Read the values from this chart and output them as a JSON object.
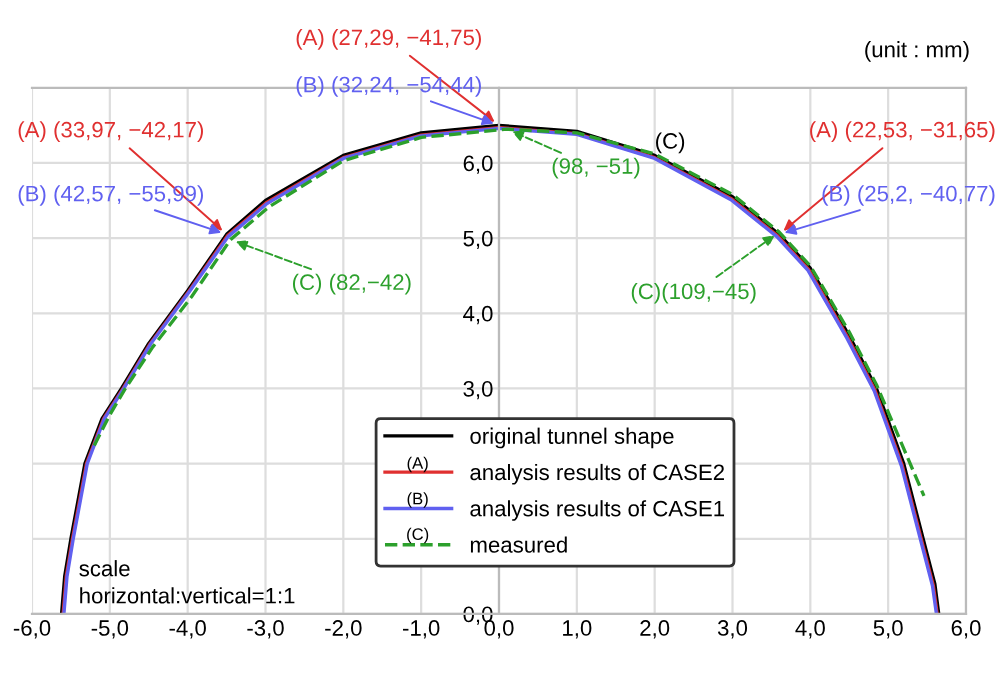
{
  "chart_data": {
    "type": "line",
    "series": [
      {
        "name": "original tunnel shape",
        "color": "#000000",
        "line_style": "solid",
        "x": [
          -5.62,
          -5.58,
          -5.5,
          -5.32,
          -5.1,
          -4.85,
          -4.5,
          -4.0,
          -3.5,
          -3.0,
          -2.0,
          -1.0,
          0,
          1.0,
          2.0,
          3.0,
          3.6,
          4.0,
          4.5,
          4.85,
          5.2,
          5.45,
          5.6,
          5.65
        ],
        "values": [
          0,
          0.5,
          1.0,
          2.0,
          2.6,
          3.0,
          3.6,
          4.3,
          5.05,
          5.5,
          6.1,
          6.4,
          6.5,
          6.42,
          6.1,
          5.55,
          5.05,
          4.6,
          3.7,
          3.0,
          2.0,
          1.0,
          0.4,
          0
        ]
      },
      {
        "name": "analysis results of CASE2",
        "color": "#e03030",
        "line_style": "solid",
        "x": [
          -5.6,
          -5.56,
          -5.48,
          -5.3,
          -5.08,
          -4.83,
          -4.48,
          -3.98,
          -3.49,
          -2.99,
          -2.0,
          -1.0,
          0,
          1.0,
          2.0,
          2.99,
          3.58,
          3.98,
          4.48,
          4.83,
          5.18,
          5.43,
          5.58,
          5.63
        ],
        "values": [
          0,
          0.5,
          1.0,
          2.0,
          2.6,
          3.0,
          3.6,
          4.3,
          5.03,
          5.47,
          6.07,
          6.37,
          6.47,
          6.39,
          6.07,
          5.52,
          5.03,
          4.58,
          3.68,
          2.98,
          1.98,
          0.98,
          0.38,
          0
        ]
      },
      {
        "name": "analysis results of CASE1",
        "color": "#6060f0",
        "line_style": "solid",
        "x": [
          -5.59,
          -5.55,
          -5.47,
          -5.29,
          -5.07,
          -4.82,
          -4.47,
          -3.97,
          -3.48,
          -2.98,
          -2.0,
          -1.0,
          0,
          1.0,
          2.0,
          2.98,
          3.57,
          3.97,
          4.47,
          4.82,
          5.17,
          5.42,
          5.57,
          5.62
        ],
        "values": [
          0,
          0.5,
          1.0,
          2.0,
          2.6,
          3.0,
          3.6,
          4.3,
          5.02,
          5.46,
          6.06,
          6.36,
          6.46,
          6.38,
          6.06,
          5.51,
          5.02,
          4.57,
          3.67,
          2.97,
          1.97,
          0.97,
          0.37,
          0
        ]
      },
      {
        "name": "measured",
        "color": "#2ca02c",
        "line_style": "dashed",
        "x": [
          -5.2,
          -5.0,
          -4.8,
          -4.45,
          -3.95,
          -3.45,
          -2.95,
          -2.0,
          -1.0,
          0.1,
          1.0,
          2.0,
          3.0,
          3.6,
          4.0,
          4.5,
          4.85,
          5.2,
          5.46
        ],
        "values": [
          2.24,
          2.65,
          3.0,
          3.55,
          4.22,
          4.98,
          5.42,
          6.03,
          6.34,
          6.45,
          6.4,
          6.12,
          5.58,
          5.08,
          4.63,
          3.75,
          3.05,
          2.2,
          1.57
        ]
      }
    ],
    "xlim": [
      -6,
      6
    ],
    "ylim": [
      0,
      7
    ],
    "xticks": [
      {
        "value": -6,
        "label": "-6,0"
      },
      {
        "value": -5,
        "label": "-5,0"
      },
      {
        "value": -4,
        "label": "-4,0"
      },
      {
        "value": -3,
        "label": "-3,0"
      },
      {
        "value": -2,
        "label": "-2,0"
      },
      {
        "value": -1,
        "label": "-1,0"
      },
      {
        "value": 0,
        "label": "0,0"
      },
      {
        "value": 1,
        "label": "1,0"
      },
      {
        "value": 2,
        "label": "2,0"
      },
      {
        "value": 3,
        "label": "3,0"
      },
      {
        "value": 4,
        "label": "4,0"
      },
      {
        "value": 5,
        "label": "5,0"
      },
      {
        "value": 6,
        "label": "6,0"
      }
    ],
    "yticks": [
      {
        "value": 0,
        "label": "0,0"
      },
      {
        "value": 1,
        "label": null
      },
      {
        "value": 2,
        "label": null
      },
      {
        "value": 3,
        "label": "3,0"
      },
      {
        "value": 4,
        "label": "4,0"
      },
      {
        "value": 5,
        "label": "5,0"
      },
      {
        "value": 6,
        "label": "6,0"
      },
      {
        "value": 7,
        "label": null
      }
    ],
    "grid": true,
    "legend": "bottom",
    "marker": "none",
    "annotations": [
      {
        "text": "(A) (33,97, −42,17)",
        "x": -3.5,
        "y": 5.05
      },
      {
        "text": "(B) (42,57, −55,99)",
        "x": -3.5,
        "y": 5.05
      },
      {
        "text": "(C) (82,−42)",
        "x": -3.45,
        "y": 4.98
      },
      {
        "text": "(A) (27,29, −41,75)",
        "x": 0,
        "y": 6.5
      },
      {
        "text": "(B) (32,24, −54,44)",
        "x": 0,
        "y": 6.5
      },
      {
        "text": "(98, −51)",
        "x": 0.1,
        "y": 6.45
      },
      {
        "text": "(A) (22,53, −31,65)",
        "x": 3.6,
        "y": 5.05
      },
      {
        "text": "(B) (25,2, −40,77)",
        "x": 3.6,
        "y": 5.05
      },
      {
        "text": "(C)(109,−45)",
        "x": 3.6,
        "y": 5.08
      },
      {
        "text": "(C)",
        "x": 2.0,
        "y": 6.12
      },
      "(unit : mm)",
      "scale\nhorizontal:vertical=1:1",
      "(A)",
      "(B)",
      "(C)"
    ]
  }
}
